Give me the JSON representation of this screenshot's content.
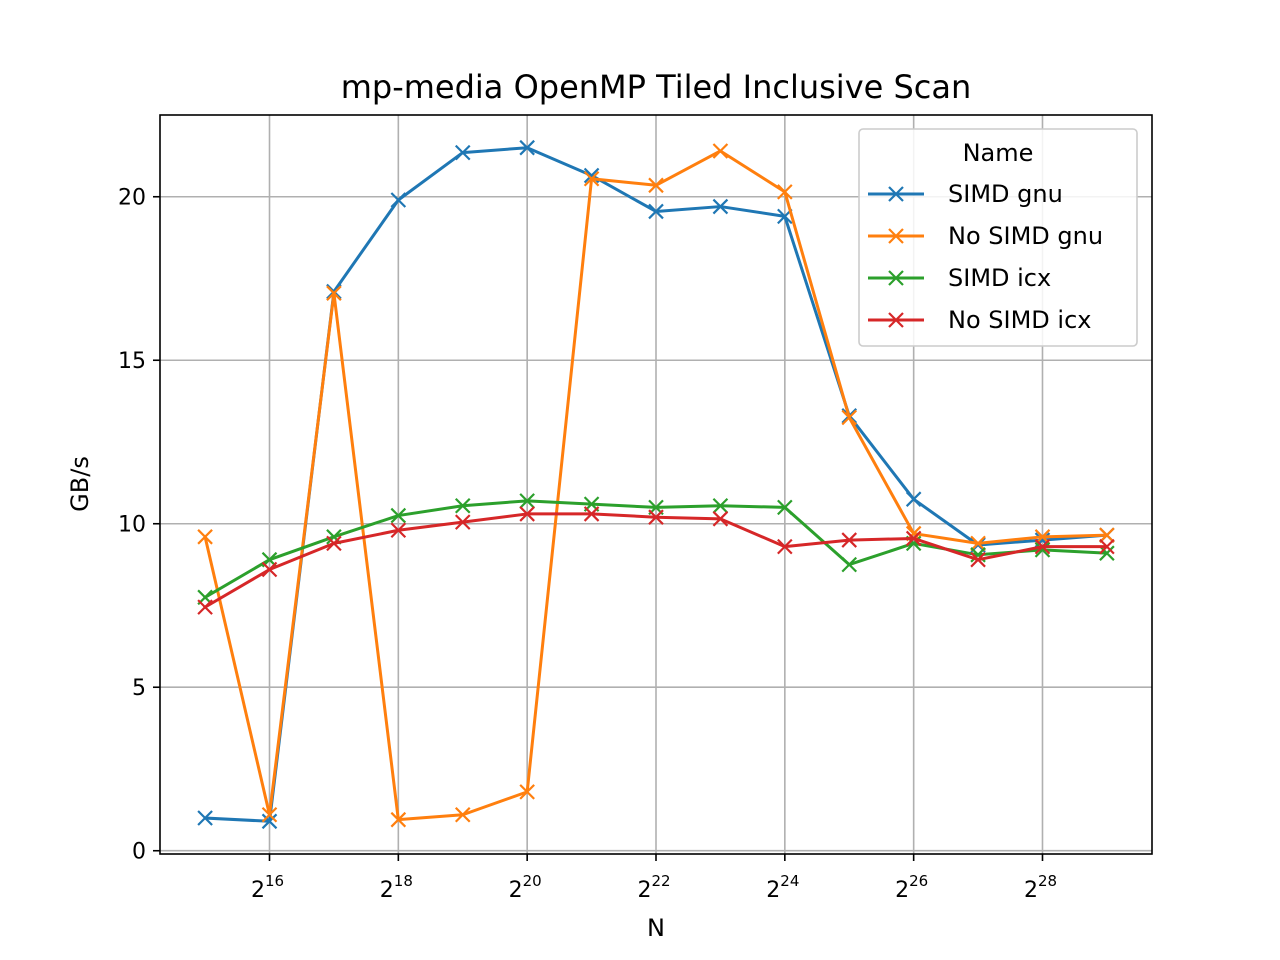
{
  "chart_data": {
    "type": "line",
    "title": "mp-media OpenMP Tiled Inclusive Scan",
    "xlabel": "N",
    "ylabel": "GB/s",
    "x_scale": "log2",
    "x": [
      15,
      16,
      17,
      18,
      19,
      20,
      21,
      22,
      23,
      24,
      25,
      26,
      27,
      28,
      29
    ],
    "x_ticks": [
      {
        "base": "2",
        "exp": "16",
        "value": 16
      },
      {
        "base": "2",
        "exp": "18",
        "value": 18
      },
      {
        "base": "2",
        "exp": "20",
        "value": 20
      },
      {
        "base": "2",
        "exp": "22",
        "value": 22
      },
      {
        "base": "2",
        "exp": "24",
        "value": 24
      },
      {
        "base": "2",
        "exp": "26",
        "value": 26
      },
      {
        "base": "2",
        "exp": "28",
        "value": 28
      }
    ],
    "xlim": [
      14.3,
      29.7
    ],
    "ylim": [
      -0.1,
      22.5
    ],
    "y_ticks": [
      0,
      5,
      10,
      15,
      20
    ],
    "grid": true,
    "marker": "x",
    "legend": {
      "title": "Name",
      "placement": "top-right"
    },
    "series": [
      {
        "name": "SIMD gnu",
        "color": "#1f77b4",
        "values": [
          1.0,
          0.9,
          17.1,
          19.9,
          21.35,
          21.5,
          20.65,
          19.55,
          19.7,
          19.4,
          13.3,
          10.75,
          9.35,
          9.5,
          9.65
        ]
      },
      {
        "name": "No SIMD gnu",
        "color": "#ff7f0e",
        "values": [
          9.6,
          1.1,
          17.05,
          0.95,
          1.1,
          1.8,
          20.55,
          20.35,
          21.4,
          20.15,
          13.25,
          9.7,
          9.4,
          9.6,
          9.65
        ]
      },
      {
        "name": "SIMD icx",
        "color": "#2ca02c",
        "values": [
          7.75,
          8.9,
          9.6,
          10.25,
          10.55,
          10.7,
          10.6,
          10.5,
          10.55,
          10.5,
          8.75,
          9.4,
          9.05,
          9.2,
          9.1
        ]
      },
      {
        "name": "No SIMD icx",
        "color": "#d62728",
        "values": [
          7.45,
          8.6,
          9.4,
          9.8,
          10.05,
          10.3,
          10.3,
          10.2,
          10.15,
          9.3,
          9.5,
          9.55,
          8.9,
          9.3,
          9.3
        ]
      }
    ]
  }
}
